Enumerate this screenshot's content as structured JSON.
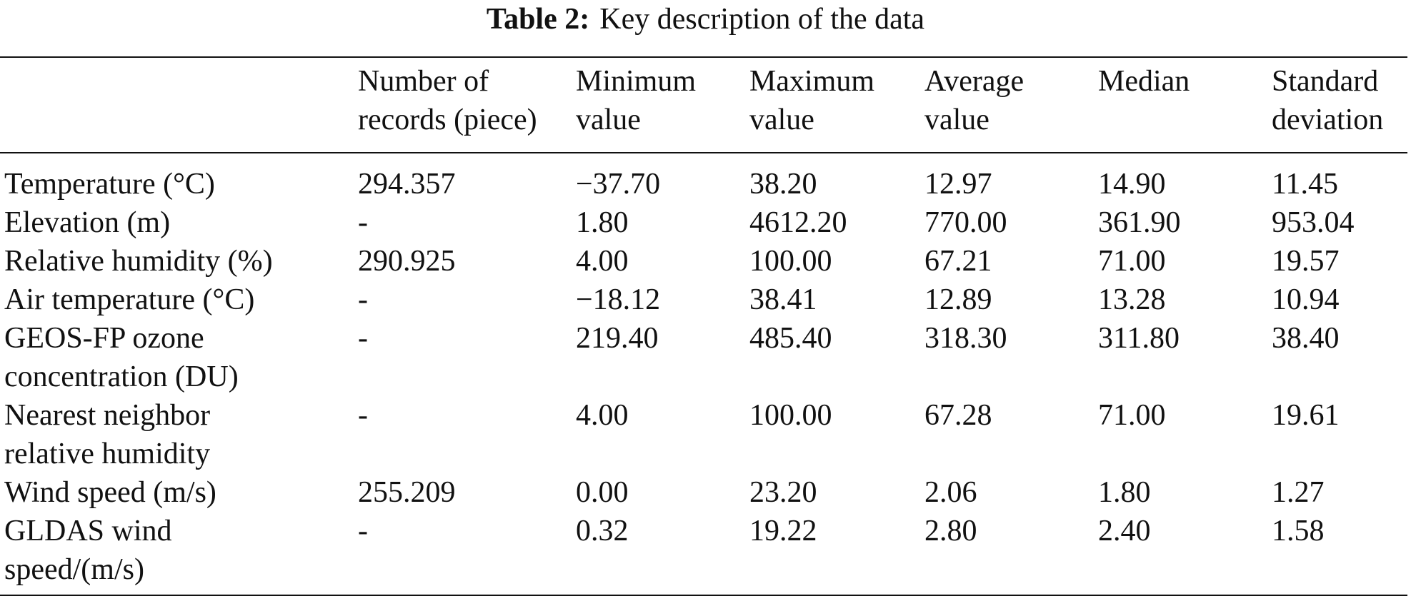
{
  "caption": {
    "label": "Table 2:",
    "text": "Key description of the data"
  },
  "table": {
    "header": [
      [
        "Number of",
        "records (piece)"
      ],
      [
        "Minimum",
        "value"
      ],
      [
        "Maximum",
        "value"
      ],
      [
        "Average",
        "value"
      ],
      [
        "Median"
      ],
      [
        "Standard",
        "deviation"
      ]
    ],
    "rows": [
      [
        [
          "Temperature (°C)"
        ],
        "294.357",
        "−37.70",
        "38.20",
        "12.97",
        "14.90",
        "11.45"
      ],
      [
        [
          "Elevation (m)"
        ],
        "-",
        "1.80",
        "4612.20",
        "770.00",
        "361.90",
        "953.04"
      ],
      [
        [
          "Relative humidity (%)"
        ],
        "290.925",
        "4.00",
        "100.00",
        "67.21",
        "71.00",
        "19.57"
      ],
      [
        [
          "Air temperature (°C)"
        ],
        "-",
        "−18.12",
        "38.41",
        "12.89",
        "13.28",
        "10.94"
      ],
      [
        [
          "GEOS-FP ozone",
          "concentration (DU)"
        ],
        "-",
        "219.40",
        "485.40",
        "318.30",
        "311.80",
        "38.40"
      ],
      [
        [
          "Nearest neighbor",
          "relative humidity"
        ],
        "-",
        "4.00",
        "100.00",
        "67.28",
        "71.00",
        "19.61"
      ],
      [
        [
          "Wind speed (m/s)"
        ],
        "255.209",
        "0.00",
        "23.20",
        "2.06",
        "1.80",
        "1.27"
      ],
      [
        [
          "GLDAS wind",
          "speed/(m/s)"
        ],
        "-",
        "0.32",
        "19.22",
        "2.80",
        "2.40",
        "1.58"
      ]
    ]
  }
}
